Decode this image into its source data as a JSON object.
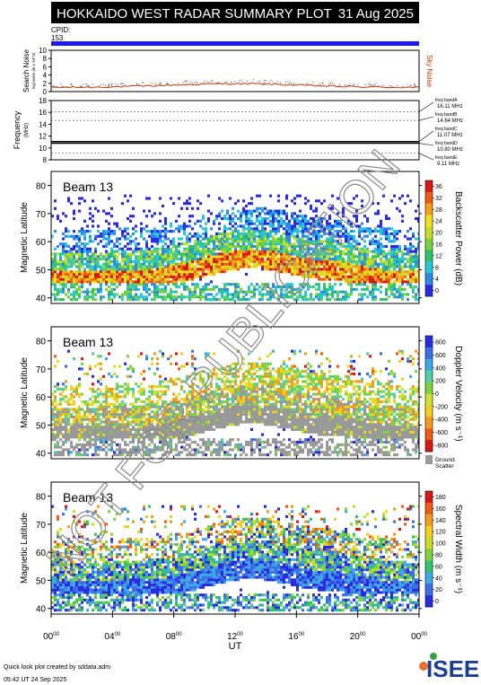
{
  "header": {
    "title": "HOKKAIDO WEST RADAR SUMMARY PLOT",
    "date": "31 Aug 2025",
    "cpid_label": "CPID:",
    "cpid_value": "153"
  },
  "colors": {
    "header_bg": "#000000",
    "cpid_bar": "#1c1cf0",
    "noise_line": "#cc3300",
    "ground_scatter": "#999999"
  },
  "noise_panel": {
    "ylabel": "Search Noise",
    "ylabel_sub": "log-noise (in x 10^3)",
    "side_label": "Sky Noise",
    "yticks": [
      "0",
      "2",
      "4",
      "6",
      "8",
      "10"
    ],
    "ylim": [
      0,
      10
    ]
  },
  "freq_panel": {
    "ylabel": "Frequency",
    "ylabel_sub": "(MHz)",
    "yticks": [
      "8",
      "10",
      "12",
      "14",
      "16",
      "18"
    ],
    "ylim": [
      8,
      18
    ],
    "bands": [
      {
        "name": "freq bandA",
        "value": "16.11 MHz",
        "mhz": 16.11
      },
      {
        "name": "freq bandB",
        "value": "14.64 MHz",
        "mhz": 14.64
      },
      {
        "name": "freq bandC",
        "value": "11.07 MHz",
        "mhz": 11.07
      },
      {
        "name": "freq bandD",
        "value": "10.80 MHz",
        "mhz": 10.8
      },
      {
        "name": "freq bandE",
        "value": "9.11 MHz",
        "mhz": 9.11
      }
    ]
  },
  "chart_data": [
    {
      "type": "heatmap",
      "beam_label": "Beam 13",
      "ylabel": "Magnetic Latitude",
      "ylim": [
        38,
        85
      ],
      "yticks": [
        "40",
        "50",
        "60",
        "70",
        "80"
      ],
      "colorbar_label": "Backscatter Power (dB)",
      "colorbar_ticks": [
        "0",
        "4",
        "8",
        "12",
        "16",
        "20",
        "24",
        "28",
        "32",
        "36"
      ],
      "colorbar_range": [
        0,
        36
      ]
    },
    {
      "type": "heatmap",
      "beam_label": "Beam 13",
      "ylabel": "Magnetic Latitude",
      "ylim": [
        38,
        85
      ],
      "yticks": [
        "40",
        "50",
        "60",
        "70",
        "80"
      ],
      "colorbar_label": "Doppler Velocity (m s⁻¹)",
      "colorbar_ticks": [
        "800",
        "600",
        "400",
        "200",
        "0",
        "-200",
        "-400",
        "-600",
        "-800"
      ],
      "colorbar_range": [
        -800,
        800
      ],
      "ground_scatter_label": [
        "Ground",
        "Scatter"
      ]
    },
    {
      "type": "heatmap",
      "beam_label": "Beam 13",
      "ylabel": "Magnetic Latitude",
      "ylim": [
        38,
        85
      ],
      "yticks": [
        "40",
        "50",
        "60",
        "70",
        "80"
      ],
      "colorbar_label": "Spectral Width (m s⁻¹)",
      "colorbar_ticks": [
        "0",
        "20",
        "40",
        "60",
        "80",
        "100",
        "120",
        "140",
        "160",
        "180"
      ],
      "colorbar_range": [
        0,
        180
      ]
    }
  ],
  "time_axis": {
    "xlabel": "UT",
    "xticks": [
      {
        "h": "00",
        "m": "00"
      },
      {
        "h": "04",
        "m": "00"
      },
      {
        "h": "08",
        "m": "00"
      },
      {
        "h": "12",
        "m": "00"
      },
      {
        "h": "16",
        "m": "00"
      },
      {
        "h": "20",
        "m": "00"
      },
      {
        "h": "00",
        "m": "00"
      }
    ],
    "xlim_hours": [
      0,
      24
    ]
  },
  "watermark": "NOT FOR PUBLICATION",
  "footer": {
    "line1": "Quick look plot created by sddata.adm",
    "line2": "05:42 UT 24 Sep 2025"
  },
  "logo": {
    "text": "ISEE"
  }
}
